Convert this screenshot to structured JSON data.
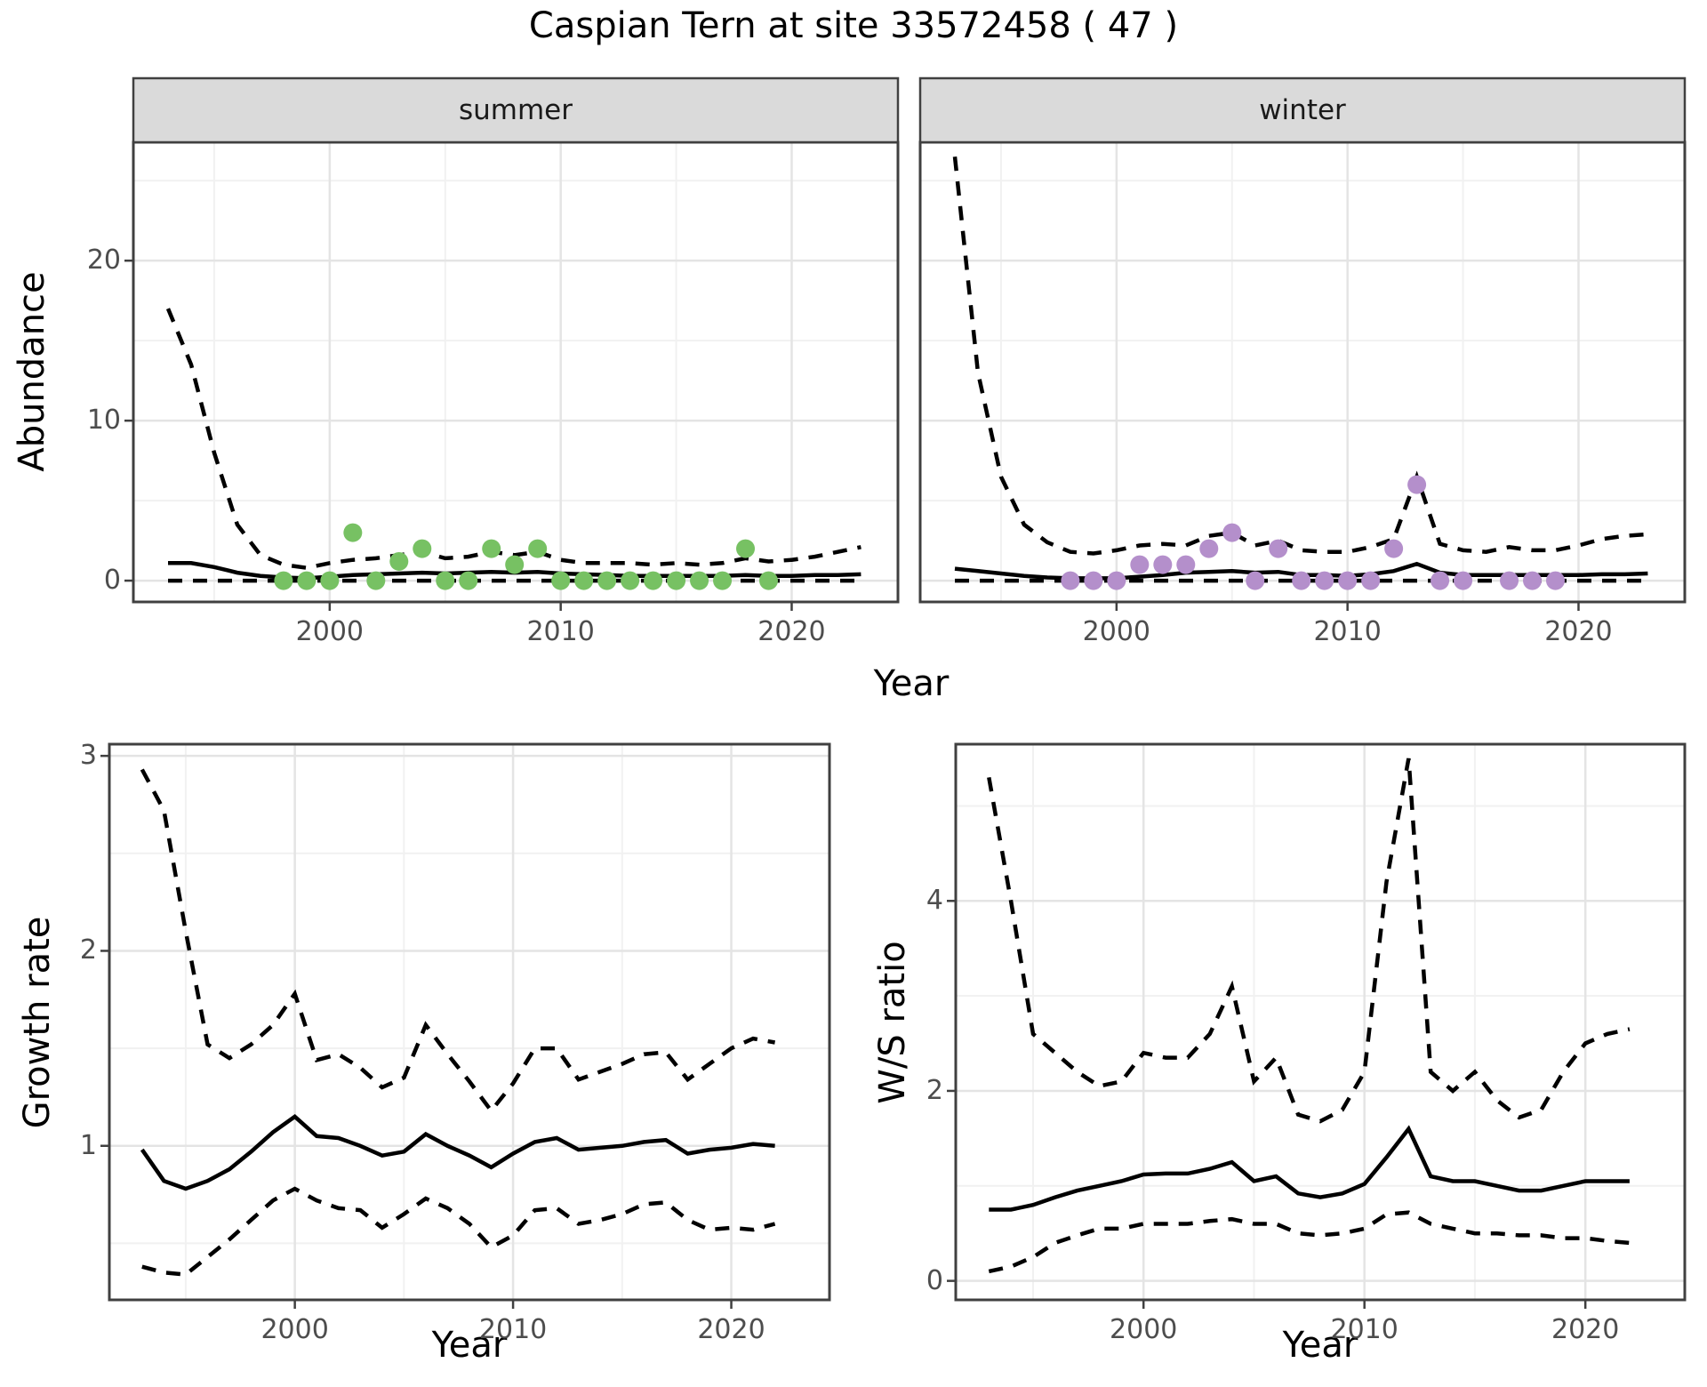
{
  "title": "Caspian Tern at site 33572458 ( 47 )",
  "facets": [
    "summer",
    "winter"
  ],
  "axis": {
    "x_label": "Year"
  },
  "colors": {
    "summer_point": "#77C163",
    "winter_point": "#B48FCB",
    "line": "#000000",
    "strip_fill": "#DADADA",
    "panel_border": "#404040",
    "grid_major": "#E4E4E4",
    "grid_minor": "#F1F1F1",
    "tick_mark": "#404040",
    "tick_text": "#4D4D4D"
  },
  "chart_data": [
    {
      "type": "line+scatter",
      "facet": "summer",
      "ylabel": "Abundance",
      "xlabel": "Year",
      "legend": "none",
      "grid": true,
      "xlim": [
        1991.5,
        2024.6
      ],
      "ylim": [
        -1.33,
        27.4
      ],
      "x_ticks": [
        2000,
        2010,
        2020
      ],
      "x_minor": [
        1995,
        2005,
        2015
      ],
      "y_ticks": [
        0,
        10,
        20
      ],
      "y_minor": [
        5,
        15,
        25
      ],
      "years": [
        1993,
        1994,
        1995,
        1996,
        1997,
        1998,
        1999,
        2000,
        2001,
        2002,
        2003,
        2004,
        2005,
        2006,
        2007,
        2008,
        2009,
        2010,
        2011,
        2012,
        2013,
        2014,
        2015,
        2016,
        2017,
        2018,
        2019,
        2020,
        2021,
        2022,
        2023
      ],
      "median": [
        1.1,
        1.1,
        0.85,
        0.5,
        0.3,
        0.2,
        0.15,
        0.25,
        0.35,
        0.4,
        0.45,
        0.5,
        0.45,
        0.5,
        0.55,
        0.5,
        0.55,
        0.45,
        0.4,
        0.35,
        0.3,
        0.3,
        0.3,
        0.3,
        0.3,
        0.35,
        0.3,
        0.3,
        0.35,
        0.35,
        0.4
      ],
      "upper": [
        17,
        13.5,
        8,
        3.5,
        1.6,
        1.0,
        0.8,
        1.1,
        1.3,
        1.4,
        1.6,
        1.8,
        1.4,
        1.5,
        1.8,
        1.6,
        1.8,
        1.3,
        1.1,
        1.1,
        1.1,
        1.0,
        1.1,
        1.0,
        1.1,
        1.4,
        1.2,
        1.3,
        1.5,
        1.8,
        2.1
      ],
      "lower": [
        0,
        0,
        0,
        0,
        0,
        0,
        0,
        0,
        0,
        0,
        0,
        0,
        0,
        0,
        0,
        0,
        0,
        0,
        0,
        0,
        0,
        0,
        0,
        0,
        0,
        0,
        0,
        0,
        0,
        0,
        0
      ],
      "points_x": [
        1998,
        1999,
        2000,
        2001,
        2002,
        2003,
        2004,
        2005,
        2006,
        2007,
        2008,
        2009,
        2010,
        2011,
        2012,
        2013,
        2014,
        2015,
        2016,
        2017,
        2018,
        2019
      ],
      "points_y": [
        0,
        0,
        0,
        3,
        0,
        1.2,
        2,
        0,
        0,
        2,
        1,
        2,
        0,
        0,
        0,
        0,
        0,
        0,
        0,
        0,
        2,
        0
      ],
      "point_color": "#77C163"
    },
    {
      "type": "line+scatter",
      "facet": "winter",
      "ylabel": "Abundance",
      "xlabel": "Year",
      "legend": "none",
      "grid": true,
      "xlim": [
        1991.5,
        2024.6
      ],
      "ylim": [
        -1.33,
        27.4
      ],
      "x_ticks": [
        2000,
        2010,
        2020
      ],
      "x_minor": [
        1995,
        2005,
        2015
      ],
      "y_ticks": [
        0,
        10,
        20
      ],
      "y_minor": [
        5,
        15,
        25
      ],
      "years": [
        1993,
        1994,
        1995,
        1996,
        1997,
        1998,
        1999,
        2000,
        2001,
        2002,
        2003,
        2004,
        2005,
        2006,
        2007,
        2008,
        2009,
        2010,
        2011,
        2012,
        2013,
        2014,
        2015,
        2016,
        2017,
        2018,
        2019,
        2020,
        2021,
        2022,
        2023
      ],
      "median": [
        0.75,
        0.6,
        0.45,
        0.3,
        0.2,
        0.15,
        0.15,
        0.15,
        0.25,
        0.35,
        0.5,
        0.55,
        0.6,
        0.5,
        0.55,
        0.35,
        0.35,
        0.3,
        0.4,
        0.6,
        1.05,
        0.5,
        0.35,
        0.35,
        0.35,
        0.35,
        0.35,
        0.35,
        0.4,
        0.4,
        0.45
      ],
      "upper": [
        26.5,
        13,
        6.5,
        3.5,
        2.4,
        1.8,
        1.7,
        1.9,
        2.2,
        2.3,
        2.2,
        2.8,
        3.0,
        2.2,
        2.5,
        1.9,
        1.8,
        1.8,
        2.1,
        2.6,
        6.5,
        2.3,
        1.9,
        1.8,
        2.1,
        1.9,
        1.9,
        2.2,
        2.6,
        2.8,
        2.9
      ],
      "lower": [
        0,
        0,
        0,
        0,
        0,
        0,
        0,
        0,
        0,
        0,
        0,
        0,
        0,
        0,
        0,
        0,
        0,
        0,
        0,
        0,
        0,
        0,
        0,
        0,
        0,
        0,
        0,
        0,
        0,
        0,
        0
      ],
      "points_x": [
        1998,
        1999,
        2000,
        2001,
        2002,
        2003,
        2004,
        2005,
        2006,
        2007,
        2008,
        2009,
        2010,
        2011,
        2012,
        2013,
        2014,
        2015,
        2017,
        2018,
        2019
      ],
      "points_y": [
        0,
        0,
        0,
        1,
        1,
        1,
        2,
        3,
        0,
        2,
        0,
        0,
        0,
        0,
        2,
        6,
        0,
        0,
        0,
        0,
        0
      ],
      "point_color": "#B48FCB"
    },
    {
      "type": "line",
      "facet": "",
      "ylabel": "Growth rate",
      "xlabel": "Year",
      "legend": "none",
      "grid": true,
      "xlim": [
        1991.5,
        2024.5
      ],
      "ylim": [
        0.21,
        3.06
      ],
      "x_ticks": [
        2000,
        2010,
        2020
      ],
      "x_minor": [
        1995,
        2005,
        2015
      ],
      "y_ticks": [
        1,
        2,
        3
      ],
      "y_minor": [
        0.5,
        1.5,
        2.5
      ],
      "years": [
        1993,
        1994,
        1995,
        1996,
        1997,
        1998,
        1999,
        2000,
        2001,
        2002,
        2003,
        2004,
        2005,
        2006,
        2007,
        2008,
        2009,
        2010,
        2011,
        2012,
        2013,
        2014,
        2015,
        2016,
        2017,
        2018,
        2019,
        2020,
        2021,
        2022
      ],
      "median": [
        0.98,
        0.82,
        0.78,
        0.82,
        0.88,
        0.97,
        1.07,
        1.15,
        1.05,
        1.04,
        1.0,
        0.95,
        0.97,
        1.06,
        1.0,
        0.95,
        0.89,
        0.96,
        1.02,
        1.04,
        0.98,
        0.99,
        1.0,
        1.02,
        1.03,
        0.96,
        0.98,
        0.99,
        1.01,
        1.0
      ],
      "upper": [
        2.93,
        2.72,
        2.1,
        1.52,
        1.45,
        1.52,
        1.62,
        1.78,
        1.44,
        1.47,
        1.4,
        1.3,
        1.35,
        1.62,
        1.47,
        1.33,
        1.18,
        1.32,
        1.5,
        1.5,
        1.34,
        1.38,
        1.42,
        1.47,
        1.48,
        1.34,
        1.42,
        1.5,
        1.55,
        1.53
      ],
      "lower": [
        0.38,
        0.35,
        0.34,
        0.43,
        0.52,
        0.62,
        0.72,
        0.78,
        0.72,
        0.68,
        0.67,
        0.58,
        0.65,
        0.73,
        0.68,
        0.6,
        0.48,
        0.54,
        0.67,
        0.68,
        0.6,
        0.62,
        0.65,
        0.7,
        0.71,
        0.62,
        0.57,
        0.58,
        0.57,
        0.6
      ]
    },
    {
      "type": "line",
      "facet": "",
      "ylabel": "W/S ratio",
      "xlabel": "Year",
      "legend": "none",
      "grid": true,
      "xlim": [
        1991.5,
        2024.5
      ],
      "ylim": [
        -0.2,
        5.65
      ],
      "x_ticks": [
        2000,
        2010,
        2020
      ],
      "x_minor": [
        1995,
        2005,
        2015
      ],
      "y_ticks": [
        0,
        2,
        4
      ],
      "y_minor": [
        1,
        3,
        5
      ],
      "years": [
        1993,
        1994,
        1995,
        1996,
        1997,
        1998,
        1999,
        2000,
        2001,
        2002,
        2003,
        2004,
        2005,
        2006,
        2007,
        2008,
        2009,
        2010,
        2011,
        2012,
        2013,
        2014,
        2015,
        2016,
        2017,
        2018,
        2019,
        2020,
        2021,
        2022
      ],
      "median": [
        0.75,
        0.75,
        0.8,
        0.88,
        0.95,
        1.0,
        1.05,
        1.12,
        1.13,
        1.13,
        1.18,
        1.25,
        1.05,
        1.1,
        0.92,
        0.88,
        0.92,
        1.02,
        1.3,
        1.6,
        1.1,
        1.05,
        1.05,
        1.0,
        0.95,
        0.95,
        1.0,
        1.05,
        1.05,
        1.05
      ],
      "upper": [
        5.3,
        4.0,
        2.6,
        2.4,
        2.2,
        2.05,
        2.1,
        2.4,
        2.35,
        2.35,
        2.6,
        3.1,
        2.1,
        2.35,
        1.75,
        1.68,
        1.8,
        2.2,
        4.2,
        5.5,
        2.2,
        2.0,
        2.2,
        1.9,
        1.72,
        1.8,
        2.2,
        2.5,
        2.6,
        2.65
      ],
      "lower": [
        0.1,
        0.15,
        0.25,
        0.4,
        0.48,
        0.55,
        0.55,
        0.6,
        0.6,
        0.6,
        0.63,
        0.65,
        0.6,
        0.6,
        0.5,
        0.48,
        0.5,
        0.55,
        0.7,
        0.72,
        0.6,
        0.55,
        0.5,
        0.5,
        0.48,
        0.48,
        0.45,
        0.45,
        0.42,
        0.4
      ]
    }
  ]
}
